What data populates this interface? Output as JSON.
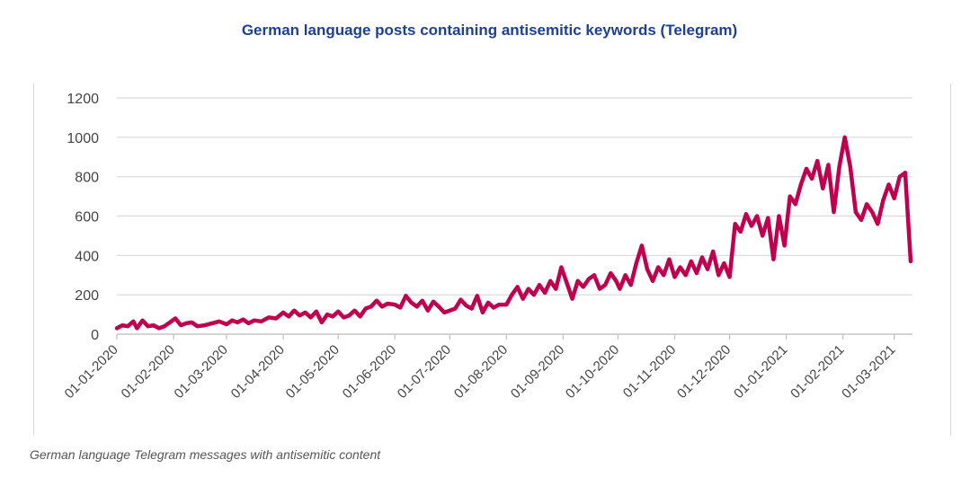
{
  "title": "German language posts containing antisemitic keywords (Telegram)",
  "caption": "German language Telegram messages with antisemitic content",
  "chart_data": {
    "type": "line",
    "title": "German language posts containing antisemitic keywords (Telegram)",
    "xlabel": "",
    "ylabel": "",
    "ylim": [
      0,
      1200
    ],
    "yticks": [
      0,
      200,
      400,
      600,
      800,
      1000,
      1200
    ],
    "xlim": [
      "2020-01-01",
      "2021-03-11"
    ],
    "xtick_labels": [
      "01-01-2020",
      "01-02-2020",
      "01-03-2020",
      "01-04-2020",
      "01-05-2020",
      "01-06-2020",
      "01-07-2020",
      "01-08-2020",
      "01-09-2020",
      "01-10-2020",
      "01-11-2020",
      "01-12-2020",
      "01-01-2021",
      "01-02-2021",
      "01-03-2021"
    ],
    "grid": "horizontal",
    "line_color": "#c0004f",
    "series": [
      {
        "points": [
          [
            "2020-01-01",
            30
          ],
          [
            "2020-01-04",
            45
          ],
          [
            "2020-01-07",
            40
          ],
          [
            "2020-01-10",
            65
          ],
          [
            "2020-01-12",
            30
          ],
          [
            "2020-01-15",
            70
          ],
          [
            "2020-01-18",
            40
          ],
          [
            "2020-01-21",
            45
          ],
          [
            "2020-01-24",
            30
          ],
          [
            "2020-01-27",
            40
          ],
          [
            "2020-01-30",
            60
          ],
          [
            "2020-02-02",
            80
          ],
          [
            "2020-02-05",
            45
          ],
          [
            "2020-02-08",
            55
          ],
          [
            "2020-02-11",
            60
          ],
          [
            "2020-02-14",
            40
          ],
          [
            "2020-02-18",
            45
          ],
          [
            "2020-02-22",
            55
          ],
          [
            "2020-02-26",
            65
          ],
          [
            "2020-03-01",
            50
          ],
          [
            "2020-03-04",
            70
          ],
          [
            "2020-03-07",
            60
          ],
          [
            "2020-03-10",
            75
          ],
          [
            "2020-03-13",
            55
          ],
          [
            "2020-03-16",
            70
          ],
          [
            "2020-03-20",
            65
          ],
          [
            "2020-03-24",
            85
          ],
          [
            "2020-03-28",
            80
          ],
          [
            "2020-04-01",
            110
          ],
          [
            "2020-04-04",
            90
          ],
          [
            "2020-04-07",
            120
          ],
          [
            "2020-04-10",
            95
          ],
          [
            "2020-04-13",
            110
          ],
          [
            "2020-04-16",
            85
          ],
          [
            "2020-04-19",
            115
          ],
          [
            "2020-04-22",
            60
          ],
          [
            "2020-04-25",
            100
          ],
          [
            "2020-04-28",
            90
          ],
          [
            "2020-05-01",
            115
          ],
          [
            "2020-05-04",
            85
          ],
          [
            "2020-05-07",
            95
          ],
          [
            "2020-05-10",
            120
          ],
          [
            "2020-05-13",
            90
          ],
          [
            "2020-05-16",
            130
          ],
          [
            "2020-05-19",
            140
          ],
          [
            "2020-05-22",
            170
          ],
          [
            "2020-05-25",
            140
          ],
          [
            "2020-05-28",
            155
          ],
          [
            "2020-06-01",
            150
          ],
          [
            "2020-06-04",
            135
          ],
          [
            "2020-06-07",
            195
          ],
          [
            "2020-06-10",
            160
          ],
          [
            "2020-06-13",
            140
          ],
          [
            "2020-06-16",
            170
          ],
          [
            "2020-06-19",
            120
          ],
          [
            "2020-06-22",
            165
          ],
          [
            "2020-06-25",
            140
          ],
          [
            "2020-06-28",
            110
          ],
          [
            "2020-07-01",
            120
          ],
          [
            "2020-07-04",
            130
          ],
          [
            "2020-07-07",
            175
          ],
          [
            "2020-07-10",
            145
          ],
          [
            "2020-07-13",
            130
          ],
          [
            "2020-07-16",
            195
          ],
          [
            "2020-07-19",
            110
          ],
          [
            "2020-07-22",
            160
          ],
          [
            "2020-07-25",
            135
          ],
          [
            "2020-07-28",
            150
          ],
          [
            "2020-08-01",
            150
          ],
          [
            "2020-08-04",
            200
          ],
          [
            "2020-08-07",
            240
          ],
          [
            "2020-08-10",
            180
          ],
          [
            "2020-08-13",
            230
          ],
          [
            "2020-08-16",
            200
          ],
          [
            "2020-08-19",
            250
          ],
          [
            "2020-08-22",
            210
          ],
          [
            "2020-08-25",
            270
          ],
          [
            "2020-08-28",
            230
          ],
          [
            "2020-08-31",
            340
          ],
          [
            "2020-09-03",
            260
          ],
          [
            "2020-09-06",
            180
          ],
          [
            "2020-09-09",
            270
          ],
          [
            "2020-09-12",
            240
          ],
          [
            "2020-09-15",
            280
          ],
          [
            "2020-09-18",
            300
          ],
          [
            "2020-09-21",
            230
          ],
          [
            "2020-09-24",
            250
          ],
          [
            "2020-09-27",
            310
          ],
          [
            "2020-09-30",
            270
          ],
          [
            "2020-10-02",
            230
          ],
          [
            "2020-10-05",
            300
          ],
          [
            "2020-10-08",
            250
          ],
          [
            "2020-10-11",
            360
          ],
          [
            "2020-10-14",
            450
          ],
          [
            "2020-10-17",
            330
          ],
          [
            "2020-10-20",
            270
          ],
          [
            "2020-10-23",
            340
          ],
          [
            "2020-10-26",
            300
          ],
          [
            "2020-10-29",
            380
          ],
          [
            "2020-11-01",
            290
          ],
          [
            "2020-11-04",
            340
          ],
          [
            "2020-11-07",
            300
          ],
          [
            "2020-11-10",
            370
          ],
          [
            "2020-11-13",
            310
          ],
          [
            "2020-11-16",
            390
          ],
          [
            "2020-11-19",
            330
          ],
          [
            "2020-11-22",
            420
          ],
          [
            "2020-11-25",
            300
          ],
          [
            "2020-11-28",
            360
          ],
          [
            "2020-12-01",
            290
          ],
          [
            "2020-12-04",
            560
          ],
          [
            "2020-12-07",
            520
          ],
          [
            "2020-12-10",
            610
          ],
          [
            "2020-12-13",
            550
          ],
          [
            "2020-12-16",
            600
          ],
          [
            "2020-12-19",
            500
          ],
          [
            "2020-12-22",
            590
          ],
          [
            "2020-12-25",
            380
          ],
          [
            "2020-12-28",
            600
          ],
          [
            "2020-12-31",
            450
          ],
          [
            "2021-01-03",
            700
          ],
          [
            "2021-01-06",
            660
          ],
          [
            "2021-01-09",
            760
          ],
          [
            "2021-01-12",
            840
          ],
          [
            "2021-01-15",
            790
          ],
          [
            "2021-01-18",
            880
          ],
          [
            "2021-01-21",
            740
          ],
          [
            "2021-01-24",
            860
          ],
          [
            "2021-01-27",
            620
          ],
          [
            "2021-01-30",
            850
          ],
          [
            "2021-02-02",
            1000
          ],
          [
            "2021-02-05",
            850
          ],
          [
            "2021-02-08",
            620
          ],
          [
            "2021-02-11",
            580
          ],
          [
            "2021-02-14",
            660
          ],
          [
            "2021-02-17",
            620
          ],
          [
            "2021-02-20",
            560
          ],
          [
            "2021-02-23",
            680
          ],
          [
            "2021-02-26",
            760
          ],
          [
            "2021-03-01",
            690
          ],
          [
            "2021-03-04",
            800
          ],
          [
            "2021-03-07",
            820
          ],
          [
            "2021-03-10",
            370
          ]
        ]
      }
    ]
  }
}
